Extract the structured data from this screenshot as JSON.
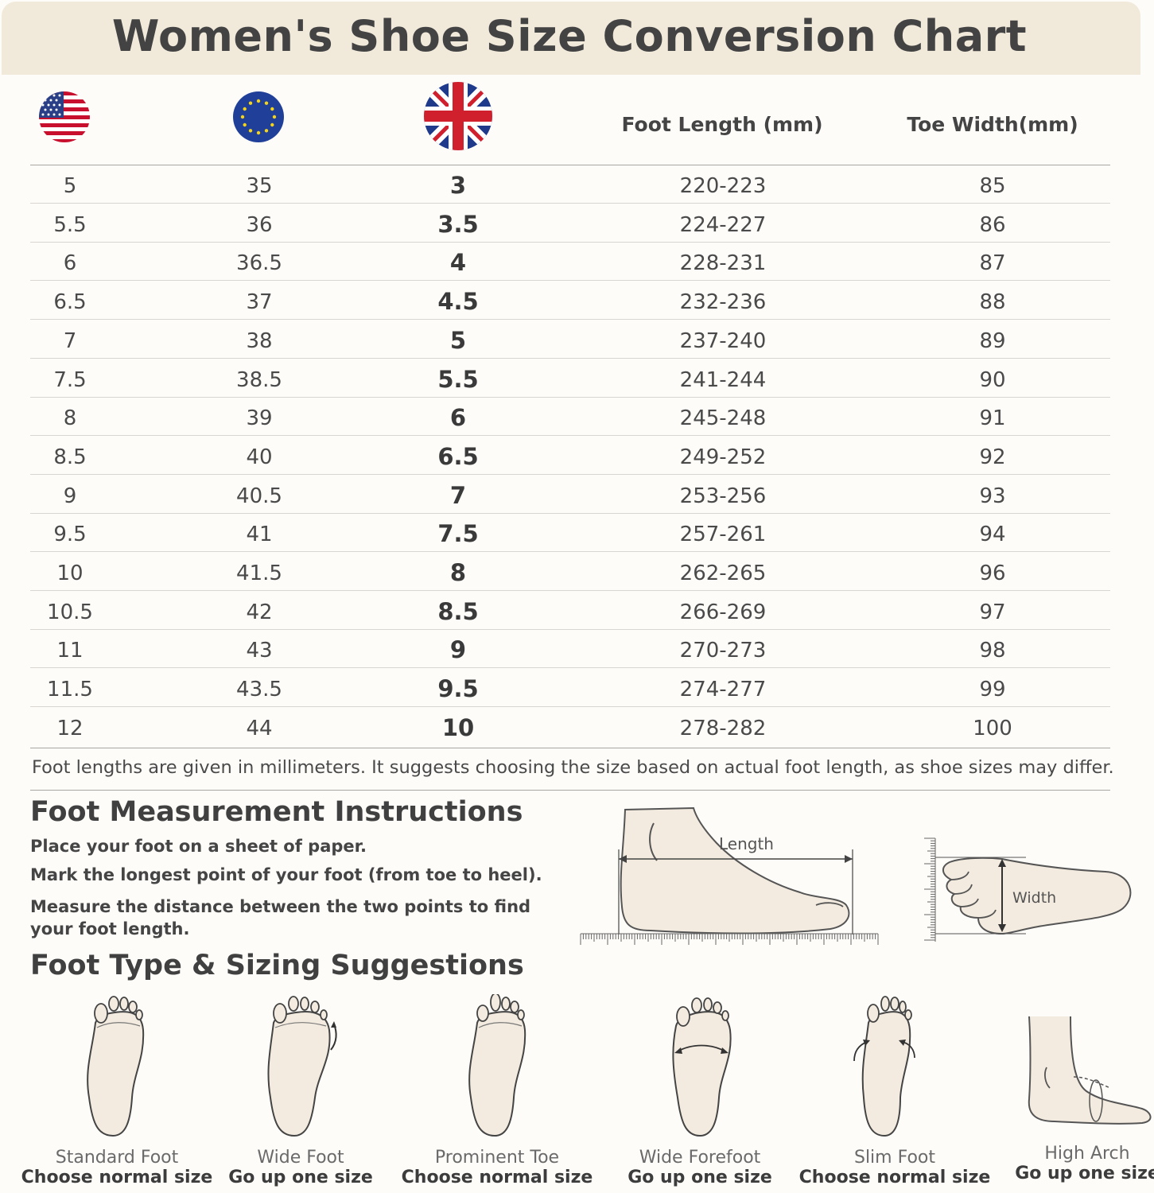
{
  "title": "Women's Shoe Size Conversion Chart",
  "columns": {
    "us_flag": "us-flag-icon",
    "eu_flag": "eu-flag-icon",
    "uk_flag": "uk-flag-icon",
    "foot_length": "Foot Length (mm)",
    "toe_width": "Toe Width(mm)"
  },
  "rows": [
    {
      "us": "5",
      "eu": "35",
      "uk": "3",
      "length": "220-223",
      "width": "85"
    },
    {
      "us": "5.5",
      "eu": "36",
      "uk": "3.5",
      "length": "224-227",
      "width": "86"
    },
    {
      "us": "6",
      "eu": "36.5",
      "uk": "4",
      "length": "228-231",
      "width": "87"
    },
    {
      "us": "6.5",
      "eu": "37",
      "uk": "4.5",
      "length": "232-236",
      "width": "88"
    },
    {
      "us": "7",
      "eu": "38",
      "uk": "5",
      "length": "237-240",
      "width": "89"
    },
    {
      "us": "7.5",
      "eu": "38.5",
      "uk": "5.5",
      "length": "241-244",
      "width": "90"
    },
    {
      "us": "8",
      "eu": "39",
      "uk": "6",
      "length": "245-248",
      "width": "91"
    },
    {
      "us": "8.5",
      "eu": "40",
      "uk": "6.5",
      "length": "249-252",
      "width": "92"
    },
    {
      "us": "9",
      "eu": "40.5",
      "uk": "7",
      "length": "253-256",
      "width": "93"
    },
    {
      "us": "9.5",
      "eu": "41",
      "uk": "7.5",
      "length": "257-261",
      "width": "94"
    },
    {
      "us": "10",
      "eu": "41.5",
      "uk": "8",
      "length": "262-265",
      "width": "96"
    },
    {
      "us": "10.5",
      "eu": "42",
      "uk": "8.5",
      "length": "266-269",
      "width": "97"
    },
    {
      "us": "11",
      "eu": "43",
      "uk": "9",
      "length": "270-273",
      "width": "98"
    },
    {
      "us": "11.5",
      "eu": "43.5",
      "uk": "9.5",
      "length": "274-277",
      "width": "99"
    },
    {
      "us": "12",
      "eu": "44",
      "uk": "10",
      "length": "278-282",
      "width": "100"
    }
  ],
  "note": "Foot lengths are given in millimeters. It suggests choosing the size based on actual foot length, as shoe sizes may differ.",
  "measurement": {
    "heading": "Foot Measurement Instructions",
    "steps": [
      "Place your foot on a sheet of paper.",
      "Mark the longest point of your foot (from toe to heel).",
      "Measure the distance between the two points to find your foot length."
    ],
    "length_label": "Length",
    "width_label": "Width"
  },
  "foot_types": {
    "heading": "Foot Type & Sizing Suggestions",
    "items": [
      {
        "name": "Standard Foot",
        "advice": "Choose normal size",
        "icon": "standard-foot-icon"
      },
      {
        "name": "Wide Foot",
        "advice": "Go up one size",
        "icon": "wide-foot-icon"
      },
      {
        "name": "Prominent Toe",
        "advice": "Choose normal size",
        "icon": "prominent-toe-icon"
      },
      {
        "name": "Wide Forefoot",
        "advice": "Go up one size",
        "icon": "wide-forefoot-icon"
      },
      {
        "name": "Slim Foot",
        "advice": "Choose normal size",
        "icon": "slim-foot-icon"
      },
      {
        "name": "High Arch",
        "advice": "Go up one size",
        "icon": "high-arch-icon"
      }
    ]
  },
  "colors": {
    "banner": "#f1e9da",
    "foot_fill": "#f3ebdf",
    "text": "#3f3f3f"
  }
}
